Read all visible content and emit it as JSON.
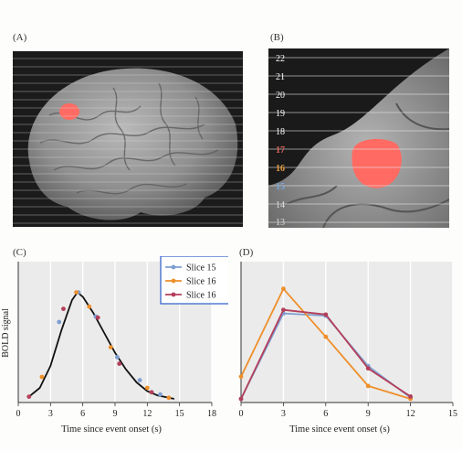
{
  "panel_labels": {
    "a": "(A)",
    "b": "(B)",
    "c": "(C)",
    "d": "(D)"
  },
  "slice_numbers": [
    "22",
    "21",
    "20",
    "19",
    "18",
    "17",
    "16",
    "15",
    "14",
    "13"
  ],
  "slice_number_colors": {
    "17": "#e0605a",
    "16": "#e8a040",
    "15": "#7aa7d8",
    "default": "#ffffff"
  },
  "colors": {
    "slice15": "#7e9fd0",
    "slice16_orange": "#ee8f2a",
    "slice16_red": "#b43e5a",
    "curve_c": "#111111",
    "activation": "#ff6b63",
    "brain_bg": "#1c1c1c"
  },
  "chart_data": [
    {
      "type": "scatter",
      "xlabel": "Time since event onset (s)",
      "ylabel": "BOLD signal",
      "xlim": [
        0,
        18
      ],
      "x_ticks": [
        "0",
        "3",
        "6",
        "9",
        "12",
        "15",
        "18"
      ],
      "grid": "vertical",
      "legend": {
        "placement": "top-right",
        "entries": [
          "Slice 15",
          "Slice 16",
          "Slice 16"
        ]
      },
      "curve": {
        "x": [
          1,
          2,
          3,
          4,
          5,
          5.5,
          6,
          7,
          8,
          9,
          10,
          11,
          12,
          13,
          14,
          14.5
        ],
        "y": [
          0.02,
          0.1,
          0.3,
          0.62,
          0.9,
          0.97,
          0.93,
          0.78,
          0.6,
          0.42,
          0.27,
          0.15,
          0.07,
          0.03,
          0.01,
          0
        ]
      },
      "series": [
        {
          "name": "Slice 15",
          "x": [
            3.8,
            5.6,
            7.2,
            9.2,
            11.3,
            13.2
          ],
          "y": [
            0.7,
            0.97,
            0.75,
            0.38,
            0.17,
            0.04
          ]
        },
        {
          "name": "Slice 16",
          "x": [
            2.2,
            5.4,
            6.6,
            8.6,
            12.0,
            14.0
          ],
          "y": [
            0.2,
            0.97,
            0.84,
            0.47,
            0.1,
            0.01
          ]
        },
        {
          "name": "Slice 16",
          "x": [
            1.0,
            4.2,
            7.4,
            9.4,
            12.4
          ],
          "y": [
            0.02,
            0.82,
            0.74,
            0.32,
            0.06
          ]
        }
      ]
    },
    {
      "type": "line",
      "xlabel": "Time since event onset (s)",
      "xlim": [
        0,
        15
      ],
      "x_ticks": [
        "0",
        "3",
        "6",
        "9",
        "12",
        "15"
      ],
      "grid": "vertical",
      "series": [
        {
          "name": "Slice 15",
          "x": [
            0,
            3,
            6,
            9,
            12
          ],
          "y": [
            0,
            0.73,
            0.71,
            0.28,
            0.01
          ]
        },
        {
          "name": "Slice 16",
          "x": [
            0,
            3,
            6,
            9,
            12
          ],
          "y": [
            0.19,
            0.94,
            0.53,
            0.11,
            0
          ]
        },
        {
          "name": "Slice 16",
          "x": [
            0,
            3,
            6,
            9,
            12
          ],
          "y": [
            0,
            0.76,
            0.72,
            0.26,
            0.02
          ]
        }
      ]
    }
  ]
}
